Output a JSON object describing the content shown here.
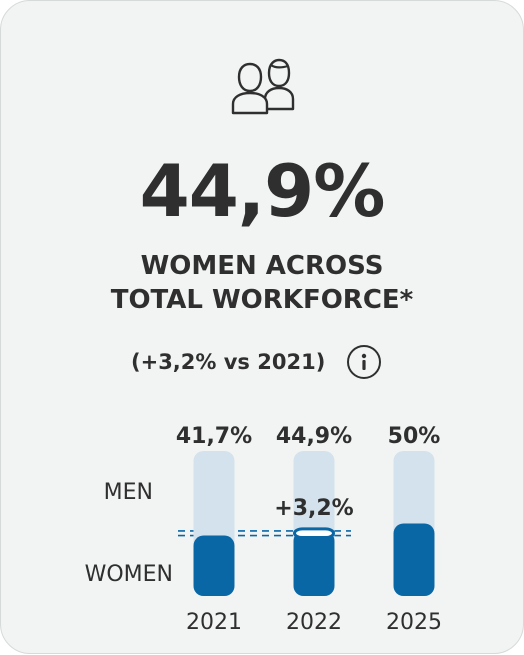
{
  "header": {
    "icon": "people-icon",
    "value": "44,9%",
    "title_line1": "WOMEN ACROSS",
    "title_line2": "TOTAL WORKFORCE*",
    "change": "(+3,2% vs 2021)",
    "info_icon": "info-icon"
  },
  "colors": {
    "women": "#0a67a6",
    "men": "#d3e2ec",
    "text": "#2f2f2f",
    "background": "#f2f4f3"
  },
  "chart_data": {
    "type": "bar",
    "stacked": true,
    "categories": [
      "2021",
      "2022",
      "2025"
    ],
    "series": [
      {
        "name": "WOMEN",
        "values": [
          41.7,
          44.9,
          50
        ]
      },
      {
        "name": "MEN",
        "values": [
          58.3,
          55.1,
          50
        ]
      }
    ],
    "value_labels": [
      "41,7%",
      "44,9%",
      "50%"
    ],
    "row_labels": [
      "MEN",
      "WOMEN"
    ],
    "highlight": {
      "category": "2022",
      "from": 41.7,
      "to": 44.9,
      "label": "+3,2%"
    },
    "reference_lines": [
      41.7,
      44.9
    ],
    "ylim": [
      0,
      100
    ]
  }
}
